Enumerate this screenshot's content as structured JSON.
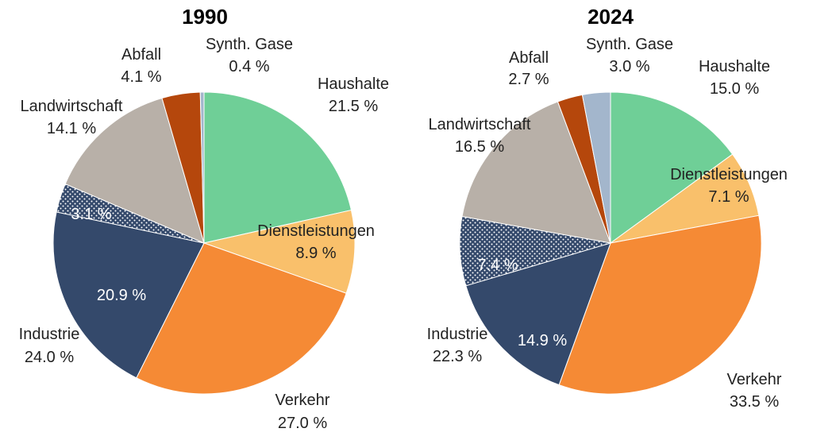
{
  "chart_data": [
    {
      "type": "pie",
      "title": "1990",
      "slices": [
        {
          "name": "Haushalte",
          "value": 21.5,
          "value_text": "21.5 %",
          "color": "#6fcf97"
        },
        {
          "name": "Dienstleistungen",
          "value": 8.9,
          "value_text": "8.9 %",
          "color": "#f9c06b"
        },
        {
          "name": "Verkehr",
          "value": 27.0,
          "value_text": "27.0 %",
          "color": "#f58a35"
        },
        {
          "name": "Industrie",
          "value": 20.9,
          "value_text": "20.9 %",
          "color": "#34496b"
        },
        {
          "name": "Industrie (gepunktet)",
          "value": 3.1,
          "value_text": "3.1 %",
          "color": "#34496b",
          "pattern": "dots"
        },
        {
          "name": "Landwirtschaft",
          "value": 14.1,
          "value_text": "14.1 %",
          "color": "#b8b0a8"
        },
        {
          "name": "Abfall",
          "value": 4.1,
          "value_text": "4.1 %",
          "color": "#b5470c"
        },
        {
          "name": "Synth. Gase",
          "value": 0.4,
          "value_text": "0.4 %",
          "color": "#a3b6cc"
        }
      ],
      "group_labels": [
        {
          "name": "Industrie",
          "value_text": "24.0 %"
        }
      ]
    },
    {
      "type": "pie",
      "title": "2024",
      "slices": [
        {
          "name": "Haushalte",
          "value": 15.0,
          "value_text": "15.0 %",
          "color": "#6fcf97"
        },
        {
          "name": "Dienstleistungen",
          "value": 7.1,
          "value_text": "7.1 %",
          "color": "#f9c06b"
        },
        {
          "name": "Verkehr",
          "value": 33.5,
          "value_text": "33.5 %",
          "color": "#f58a35"
        },
        {
          "name": "Industrie",
          "value": 14.9,
          "value_text": "14.9 %",
          "color": "#34496b"
        },
        {
          "name": "Industrie (gepunktet)",
          "value": 7.4,
          "value_text": "7.4 %",
          "color": "#34496b",
          "pattern": "dots"
        },
        {
          "name": "Landwirtschaft",
          "value": 16.5,
          "value_text": "16.5 %",
          "color": "#b8b0a8"
        },
        {
          "name": "Abfall",
          "value": 2.7,
          "value_text": "2.7 %",
          "color": "#b5470c"
        },
        {
          "name": "Synth. Gase",
          "value": 3.0,
          "value_text": "3.0 %",
          "color": "#a3b6cc"
        }
      ],
      "group_labels": [
        {
          "name": "Industrie",
          "value_text": "22.3 %"
        }
      ]
    }
  ]
}
